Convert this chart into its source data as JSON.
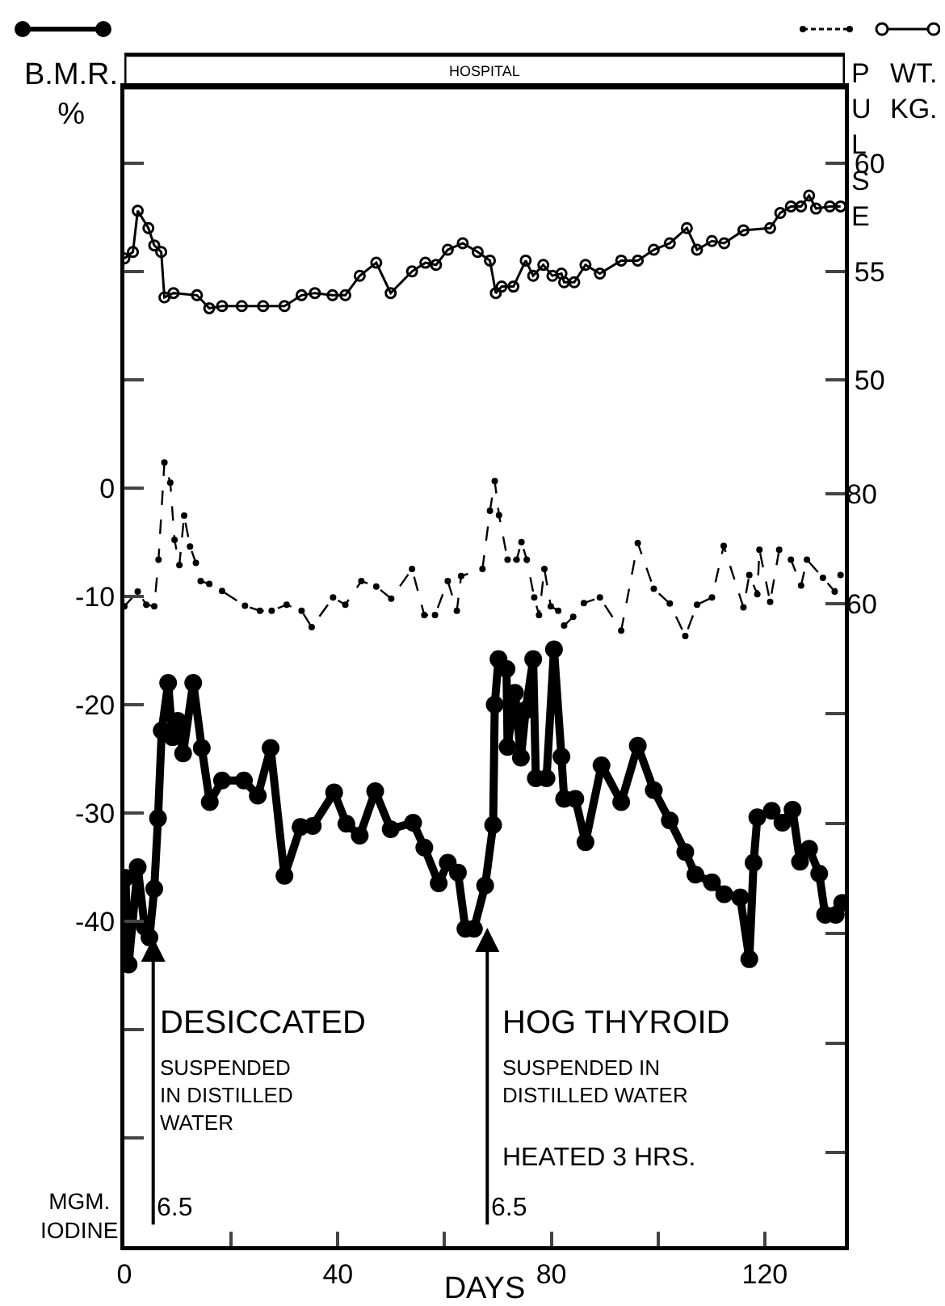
{
  "chart_data": {
    "type": "line",
    "xlabel": "DAYS",
    "ylabel": "B.M.R.\n%",
    "y2label": "WT.\nKG.",
    "y3label": "PULSE",
    "xlim": [
      0,
      135
    ],
    "xticks": [
      0,
      {
        "value": 20,
        "label": null
      },
      40,
      {
        "value": 60,
        "label": null
      },
      80,
      {
        "value": 100,
        "label": null
      },
      120
    ],
    "ylim": [
      -70,
      37
    ],
    "yticks": [
      {
        "value": 30,
        "label": null
      },
      {
        "value": 20,
        "label": null
      },
      {
        "value": 10,
        "label": null
      },
      0,
      -10,
      -20,
      -30,
      -40,
      {
        "value": -50,
        "label": null
      },
      {
        "value": -60,
        "label": null
      }
    ],
    "y2lim": [
      10,
      63.5
    ],
    "y2ticks": [
      60,
      55,
      50
    ],
    "y3lim": [
      -57,
      154
    ],
    "y3ticks": [
      80,
      60,
      {
        "value": 40,
        "label": null
      },
      {
        "value": 20,
        "label": null
      },
      {
        "value": 0,
        "label": null
      },
      {
        "value": -20,
        "label": null
      },
      {
        "value": -40,
        "label": null
      }
    ],
    "grid": false,
    "bands": [
      {
        "axis": "x",
        "from": 0,
        "to": 135,
        "label": "HOSPITAL"
      }
    ],
    "series": [
      {
        "color": "#000000",
        "marker": "circle",
        "line_style": "solid",
        "x": [
          0.2,
          0.8,
          2.5,
          3.8,
          4.7,
          5.6,
          6.3,
          7,
          8.2,
          9,
          10,
          11,
          12.9,
          14.5,
          16,
          18.3,
          22.4,
          25,
          27.4,
          30,
          33,
          35.3,
          39.3,
          41.6,
          44.1,
          47,
          49.9,
          54.1,
          56.2,
          58.9,
          60.6,
          62.5,
          63.9,
          65.5,
          67.6,
          69.1,
          69.4,
          70.1,
          71.6,
          71.8,
          73.2,
          74.3,
          75.2,
          76.6,
          77.1,
          79.1,
          80.5,
          81.9,
          82.4,
          84.5,
          86.4,
          89.4,
          93.1,
          96.2,
          99.2,
          102.2,
          105.1,
          107,
          110.1,
          112.4,
          115.4,
          117.1,
          117.9,
          118.6,
          121.3,
          123.3,
          125.2,
          126.6,
          128.3,
          130.2,
          131.3,
          133.3,
          134.5
        ],
        "values": [
          -36,
          -44,
          -35,
          -40.5,
          -41.5,
          -37,
          -30.5,
          -22.4,
          -18,
          -23,
          -21.5,
          -24.5,
          -18,
          -24,
          -29,
          -27,
          -27,
          -28.4,
          -24,
          -35.8,
          -31.3,
          -31.2,
          -28.1,
          -31,
          -32.1,
          -28,
          -31.5,
          -30.9,
          -33.2,
          -36.5,
          -34.6,
          -35.5,
          -40.7,
          -40.7,
          -36.7,
          -31.1,
          -20,
          -15.8,
          -16.7,
          -23.9,
          -18.9,
          -24.9,
          -20.5,
          -15.8,
          -26.8,
          -26.8,
          -14.9,
          -24.8,
          -28.7,
          -28.7,
          -32.7,
          -25.6,
          -29,
          -23.8,
          -27.9,
          -30.7,
          -33.6,
          -35.7,
          -36.4,
          -37.5,
          -37.8,
          -43.5,
          -34.6,
          -30.4,
          -29.8,
          -30.9,
          -29.7,
          -34.5,
          -33.3,
          -35.6,
          -39.4,
          -39.4,
          -38.3
        ]
      },
      {
        "color": "#000000",
        "marker": "circle",
        "line_style": "dashed",
        "axis": "y3",
        "x": [
          0,
          2.5,
          4.1,
          5.6,
          6.4,
          7.5,
          8.6,
          9.4,
          10.3,
          11.2,
          12.3,
          13.4,
          14.3,
          15.9,
          18.3,
          22.6,
          25.4,
          27.6,
          30.4,
          33.2,
          35.1,
          39.1,
          41.4,
          44.4,
          47.2,
          50,
          53.9,
          56.2,
          58.2,
          60.6,
          62.3,
          63.1,
          67.1,
          68.5,
          69.4,
          70.2,
          71.8,
          73.5,
          74.4,
          75.4,
          76.8,
          77.7,
          78.7,
          79.9,
          81.3,
          82.4,
          84.1,
          86.1,
          89.1,
          93.1,
          96.2,
          99.2,
          102.2,
          105.1,
          107.3,
          110.1,
          112.3,
          116,
          117.1,
          118.6,
          119,
          121,
          122.7,
          124.9,
          126.8,
          127.9,
          130.9,
          133.1,
          134.2
        ],
        "values": [
          59.5,
          62.2,
          59.8,
          59.5,
          68,
          85.7,
          82,
          71.6,
          67,
          76,
          70.4,
          67.4,
          64.1,
          63.6,
          62.3,
          59.6,
          58.7,
          58.7,
          59.8,
          58.7,
          55.7,
          61.1,
          59.8,
          64.1,
          63.1,
          60.9,
          66.3,
          57.9,
          57.9,
          64.1,
          58.7,
          65,
          66.3,
          76.9,
          82.3,
          76.1,
          68,
          68,
          71.2,
          68,
          61.1,
          57.9,
          66.3,
          59.5,
          58.7,
          56,
          57.6,
          60.1,
          61.1,
          55.1,
          71,
          62.7,
          60,
          54.1,
          59.8,
          61.1,
          70.5,
          59.3,
          65.2,
          61.7,
          69.8,
          60.3,
          69.8,
          68,
          63.3,
          68,
          64.7,
          62.2,
          65.2
        ]
      },
      {
        "color": "#000000",
        "marker": "circle",
        "line_style": "solid",
        "axis": "y2",
        "x": [
          0,
          1.6,
          2.5,
          4.5,
          5.6,
          6.9,
          7.5,
          9.2,
          13.6,
          15.9,
          18.3,
          22,
          26,
          30,
          33.2,
          35.7,
          39,
          41.4,
          44.1,
          47.2,
          49.9,
          53.9,
          56.4,
          58.4,
          60.6,
          63.4,
          66.2,
          68.5,
          69.6,
          70.7,
          72.9,
          75.2,
          76.6,
          78.5,
          80.2,
          81.9,
          82.4,
          84.3,
          86.4,
          89.1,
          93.1,
          96.2,
          99.2,
          102.2,
          105.4,
          107.3,
          110.1,
          112.4,
          116,
          121,
          122.9,
          124.9,
          126.8,
          128.3,
          129.6,
          132.2,
          134.2
        ],
        "values": [
          55.6,
          55.9,
          57.8,
          57,
          56.2,
          55.9,
          53.8,
          54,
          53.9,
          53.3,
          53.4,
          53.4,
          53.4,
          53.4,
          53.9,
          54,
          53.9,
          53.9,
          54.8,
          55.4,
          54,
          55,
          55.4,
          55.3,
          56,
          56.3,
          55.9,
          55.5,
          54,
          54.3,
          54.3,
          55.5,
          54.8,
          55.3,
          54.8,
          54.9,
          54.5,
          54.5,
          55.3,
          54.9,
          55.5,
          55.5,
          56,
          56.3,
          57,
          56,
          56.4,
          56.3,
          56.9,
          57,
          57.7,
          58,
          58,
          58.5,
          57.9,
          58,
          58
        ]
      }
    ],
    "annotations": [
      {
        "text": "6.5",
        "x": 5.4,
        "y": -41.5
      },
      {
        "text": "6.5",
        "x": 68,
        "y": -40.6
      },
      "DESICCATED",
      "SUSPENDED\nIN DISTILLED\nWATER",
      "HOG THYROID",
      "SUSPENDED IN\nDISTILLED WATER",
      "HEATED 3 HRS.",
      "MGM.\nIODINE"
    ]
  }
}
